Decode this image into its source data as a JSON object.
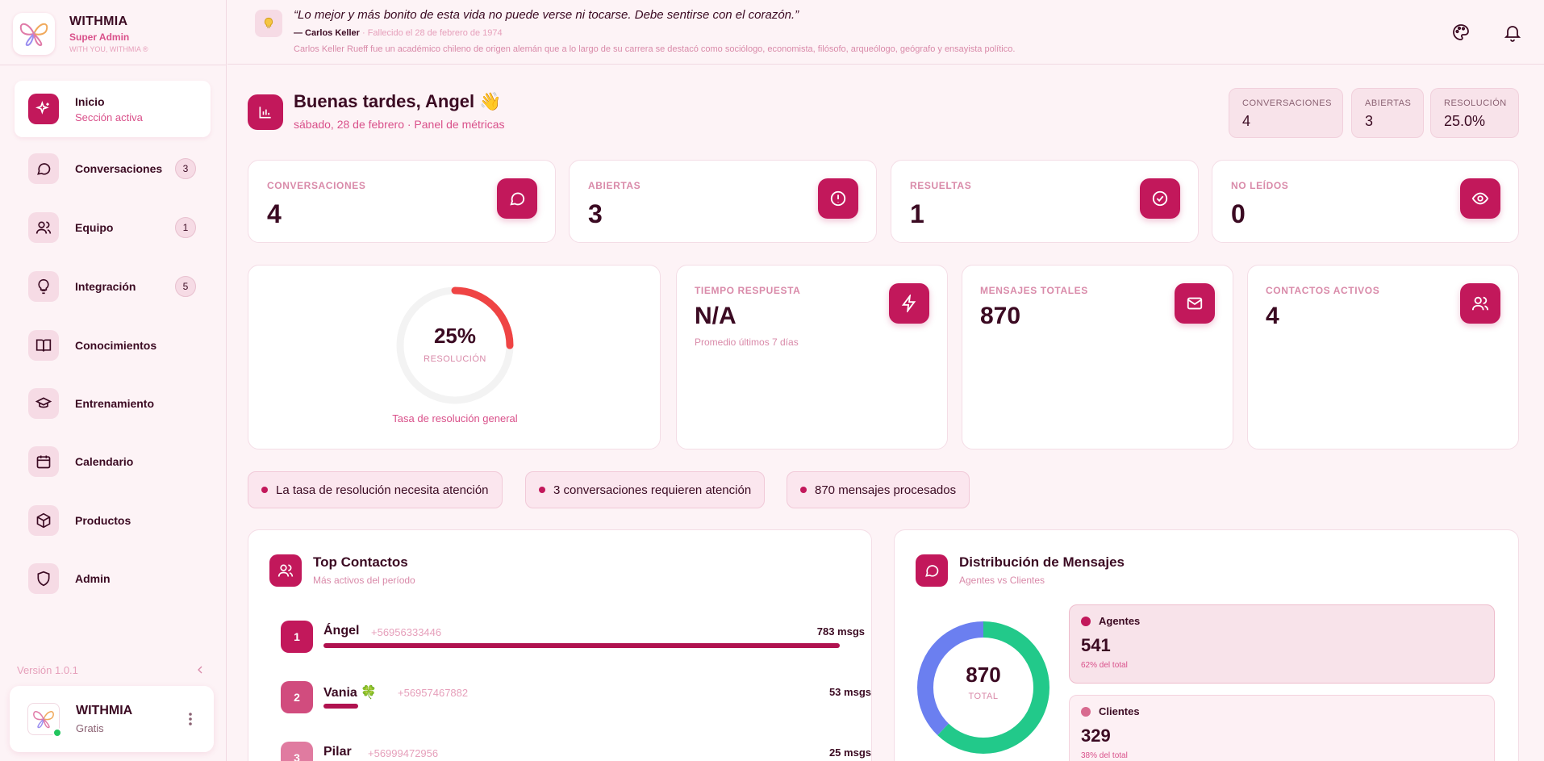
{
  "brand": {
    "name": "WITHMIA",
    "role": "Super Admin",
    "tagline": "WITH YOU, WITHMIA ®"
  },
  "sidebar": {
    "items": [
      {
        "label": "Inicio",
        "sub": "Sección activa",
        "icon": "sparkles-icon",
        "active": true
      },
      {
        "label": "Conversaciones",
        "badge": "3",
        "icon": "chat-bubble-icon"
      },
      {
        "label": "Equipo",
        "badge": "1",
        "icon": "users-icon"
      },
      {
        "label": "Integración",
        "badge": "5",
        "icon": "lightbulb-icon"
      },
      {
        "label": "Conocimientos",
        "icon": "book-icon"
      },
      {
        "label": "Entrenamiento",
        "icon": "graduation-cap-icon"
      },
      {
        "label": "Calendario",
        "icon": "calendar-icon"
      },
      {
        "label": "Productos",
        "icon": "box-icon"
      },
      {
        "label": "Admin",
        "icon": "shield-icon"
      }
    ],
    "version": "Versión 1.0.1",
    "user": {
      "name": "WITHMIA",
      "plan": "Gratis"
    }
  },
  "quote": {
    "text": "“Lo mejor y más bonito de esta vida no puede verse ni tocarse. Debe sentirse con el corazón.”",
    "author": "— Carlos Keller",
    "date": " · Fallecido el 28 de febrero de 1974",
    "bio": "Carlos Keller Rueff fue un académico chileno de origen alemán que a lo largo de su carrera se destacó como sociólogo, economista, filósofo, arqueólogo, geógrafo y ensayista político."
  },
  "header": {
    "greeting": "Buenas tardes, Angel 👋",
    "subtitle": "sábado, 28 de febrero · Panel de métricas",
    "pills": [
      {
        "label": "CONVERSACIONES",
        "value": "4"
      },
      {
        "label": "ABIERTAS",
        "value": "3"
      },
      {
        "label": "RESOLUCIÓN",
        "value": "25.0%"
      }
    ]
  },
  "stats": [
    {
      "label": "CONVERSACIONES",
      "value": "4",
      "icon": "chat-bubble-icon"
    },
    {
      "label": "ABIERTAS",
      "value": "3",
      "icon": "alert-circle-icon"
    },
    {
      "label": "RESUELTAS",
      "value": "1",
      "icon": "check-circle-icon"
    },
    {
      "label": "NO LEÍDOS",
      "value": "0",
      "icon": "eye-icon"
    }
  ],
  "resolution": {
    "percent_text": "25%",
    "percent": 25,
    "label": "RESOLUCIÓN",
    "caption": "Tasa de resolución general"
  },
  "metrics": [
    {
      "label": "TIEMPO RESPUESTA",
      "value": "N/A",
      "sub": "Promedio últimos 7 días",
      "icon": "lightning-icon"
    },
    {
      "label": "MENSAJES TOTALES",
      "value": "870",
      "sub": "",
      "icon": "mail-icon"
    },
    {
      "label": "CONTACTOS ACTIVOS",
      "value": "4",
      "sub": "",
      "icon": "users-icon"
    }
  ],
  "alerts": [
    "La tasa de resolución necesita atención",
    "3 conversaciones requieren atención",
    "870 mensajes procesados"
  ],
  "top_contacts": {
    "title": "Top Contactos",
    "subtitle": "Más activos del período",
    "rows": [
      {
        "rank": "1",
        "name": "Ángel",
        "phone": "+56956333446",
        "msgs": "783 msgs",
        "count": 783
      },
      {
        "rank": "2",
        "name": "Vania 🍀",
        "phone": "+56957467882",
        "msgs": "53 msgs",
        "count": 53
      },
      {
        "rank": "3",
        "name": "Pilar",
        "phone": "+56999472956",
        "msgs": "25 msgs",
        "count": 25
      }
    ]
  },
  "distribution": {
    "title": "Distribución de Mensajes",
    "subtitle": "Agentes vs Clientes",
    "total": "870",
    "total_label": "TOTAL",
    "agents": {
      "label": "Agentes",
      "value": "541",
      "pct": "62% del total",
      "color": "#c2185b"
    },
    "clients": {
      "label": "Clientes",
      "value": "329",
      "pct": "38% del total",
      "color": "#d86a8f"
    }
  },
  "colors": {
    "accent": "#c2185b",
    "gauge_arc": "#ef4444",
    "donut_green": "#22c98a",
    "donut_blue": "#6b7ff0"
  }
}
